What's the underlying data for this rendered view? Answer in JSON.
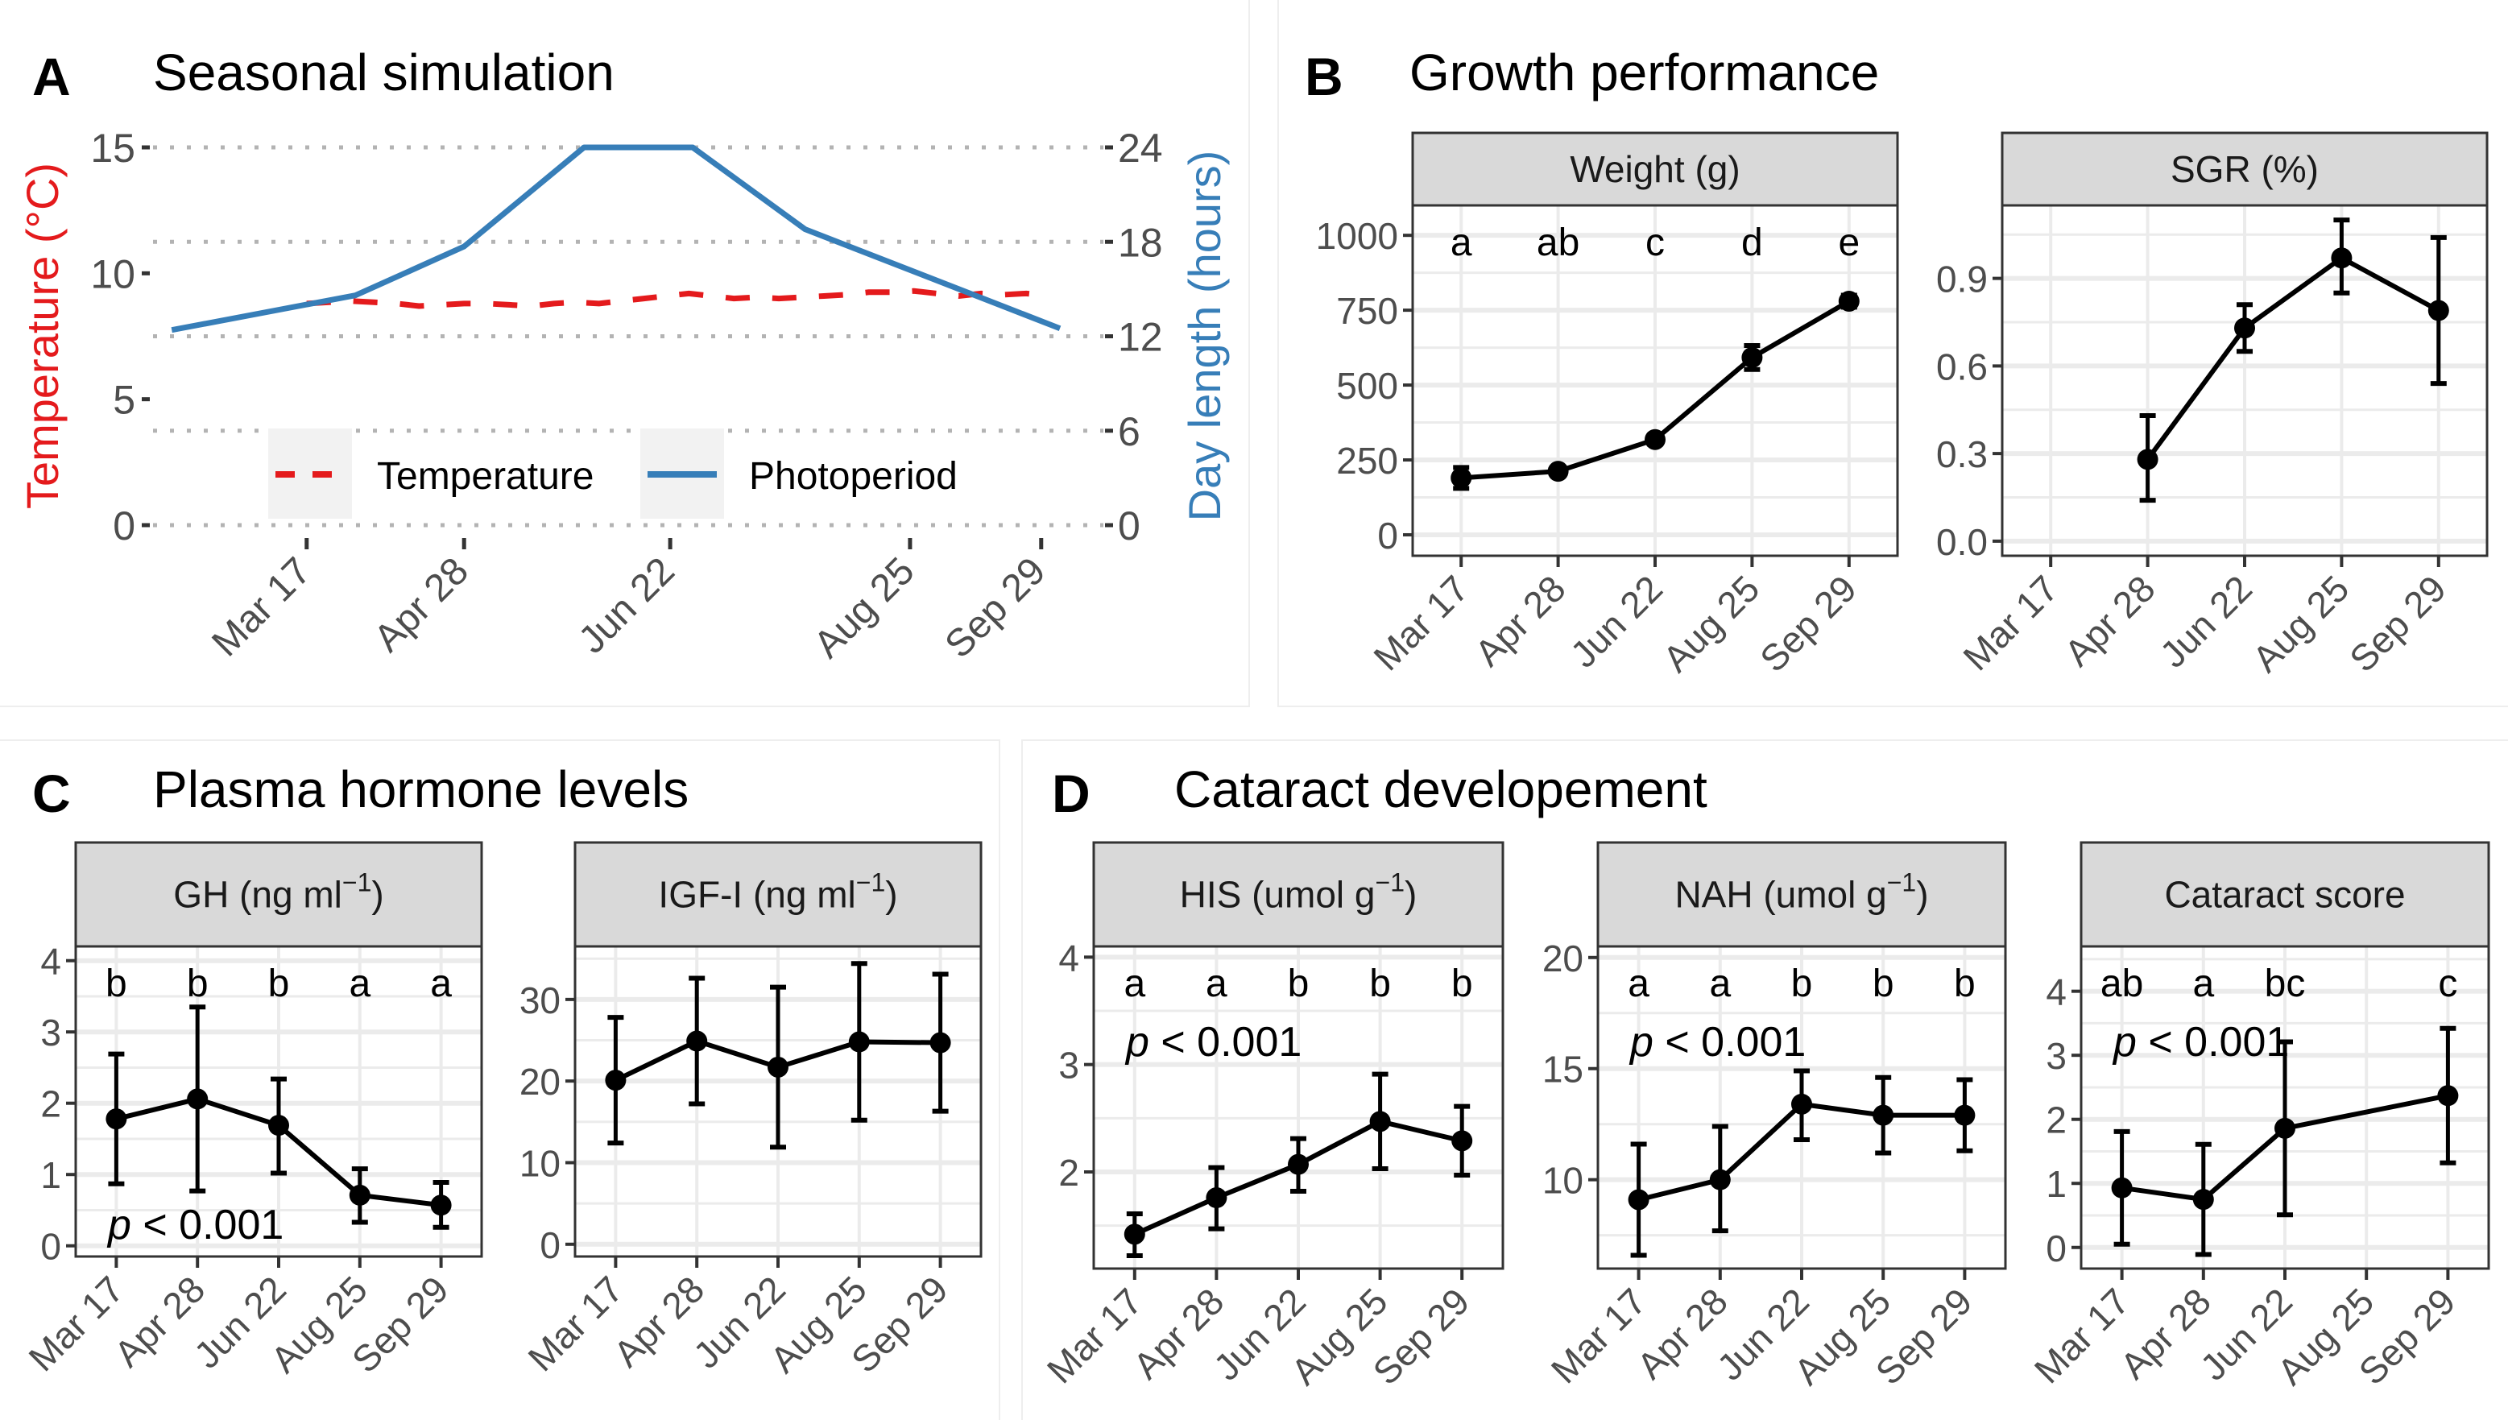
{
  "figure": {
    "panels": [
      {
        "letter": "A",
        "title": "Seasonal simulation"
      },
      {
        "letter": "B",
        "title": "Growth performance"
      },
      {
        "letter": "C",
        "title": "Plasma hormone levels"
      },
      {
        "letter": "D",
        "title": "Cataract developement"
      }
    ]
  },
  "colors": {
    "temperature": "#e41a1c",
    "photoperiod": "#377eb8",
    "strip_bg": "#d9d9d9",
    "grid": "#ebebeb",
    "axis_text": "#4d4d4d",
    "series": "#000000"
  },
  "chart_data": [
    {
      "id": "A",
      "type": "line",
      "title": "Seasonal simulation",
      "xlabel": "",
      "ylabel_left": "Temperature (°C)",
      "ylabel_right": "Day length (hours)",
      "x_ticks": [
        "Mar 17",
        "Apr 28",
        "Jun 22",
        "Aug 25",
        "Sep 29"
      ],
      "x_tick_days": [
        76,
        118,
        173,
        237,
        272
      ],
      "xlim_days": [
        35,
        280
      ],
      "ylim_left": [
        0,
        15
      ],
      "yticks_left": [
        0,
        5,
        10,
        15
      ],
      "ylim_right": [
        0,
        24
      ],
      "yticks_right": [
        0,
        6,
        12,
        18,
        24
      ],
      "grid": "dotted horizontal at right-axis ticks",
      "legend": {
        "position": "bottom-center",
        "entries": [
          "Temperature",
          "Photoperiod"
        ]
      },
      "series": [
        {
          "name": "Temperature",
          "axis": "left",
          "style": "dashed",
          "x_days": [
            76,
            82,
            88,
            94,
            100,
            106,
            112,
            118,
            124,
            130,
            136,
            142,
            148,
            154,
            160,
            166,
            172,
            178,
            184,
            190,
            196,
            202,
            208,
            214,
            220,
            226,
            232,
            238,
            244,
            250,
            256,
            262,
            268,
            274
          ],
          "values": [
            8.8,
            8.85,
            8.9,
            8.85,
            8.8,
            8.7,
            8.75,
            8.8,
            8.8,
            8.75,
            8.7,
            8.8,
            8.85,
            8.8,
            8.9,
            9.0,
            9.1,
            9.2,
            9.1,
            9.0,
            9.05,
            9.0,
            9.05,
            9.1,
            9.15,
            9.25,
            9.25,
            9.3,
            9.2,
            9.1,
            9.2,
            9.15,
            9.2,
            9.1
          ]
        },
        {
          "name": "Photoperiod",
          "axis": "right",
          "style": "solid",
          "x_days": [
            40,
            89,
            118,
            150,
            179,
            209,
            277
          ],
          "values": [
            12.4,
            14.6,
            17.7,
            24,
            24,
            18.8,
            12.5
          ]
        }
      ]
    },
    {
      "id": "B1",
      "type": "line",
      "facet": "Weight (g)",
      "categories": [
        "Mar 17",
        "Apr 28",
        "Jun 22",
        "Aug 25",
        "Sep 29"
      ],
      "values": [
        190,
        212,
        318,
        592,
        780
      ],
      "error_low": [
        155,
        200,
        303,
        552,
        760
      ],
      "error_high": [
        225,
        224,
        333,
        632,
        800
      ],
      "letters": [
        "a",
        "ab",
        "c",
        "d",
        "e"
      ],
      "ylim": [
        -70,
        1100
      ],
      "yticks": [
        0,
        250,
        500,
        750,
        1000
      ],
      "p_label": ""
    },
    {
      "id": "B2",
      "type": "line",
      "facet": "SGR (%)",
      "categories": [
        "Mar 17",
        "Apr 28",
        "Jun 22",
        "Aug 25",
        "Sep 29"
      ],
      "values": [
        null,
        0.28,
        0.73,
        0.97,
        0.79
      ],
      "error_low": [
        null,
        0.14,
        0.65,
        0.85,
        0.54
      ],
      "error_high": [
        null,
        0.43,
        0.81,
        1.1,
        1.04
      ],
      "letters": [],
      "ylim": [
        -0.05,
        1.15
      ],
      "yticks": [
        0.0,
        0.3,
        0.6,
        0.9
      ],
      "ytick_labels": [
        "0.0",
        "0.3",
        "0.6",
        "0.9"
      ],
      "p_label": ""
    },
    {
      "id": "C1",
      "type": "line",
      "facet_main": "GH (ng ml",
      "facet_sup": "−1",
      "facet_end": ")",
      "categories": [
        "Mar 17",
        "Apr 28",
        "Jun 22",
        "Aug 25",
        "Sep 29"
      ],
      "values": [
        1.78,
        2.06,
        1.69,
        0.71,
        0.57
      ],
      "error_low": [
        0.87,
        0.77,
        1.02,
        0.33,
        0.26
      ],
      "error_high": [
        2.69,
        3.35,
        2.34,
        1.08,
        0.89
      ],
      "letters": [
        "b",
        "b",
        "b",
        "a",
        "a"
      ],
      "ylim": [
        -0.15,
        4.2
      ],
      "yticks": [
        0,
        1,
        2,
        3,
        4
      ],
      "p_label": "< 0.001",
      "p_position": "bottom-left"
    },
    {
      "id": "C2",
      "type": "line",
      "facet_main": "IGF-I (ng ml",
      "facet_sup": "−1",
      "facet_end": ")",
      "categories": [
        "Mar 17",
        "Apr 28",
        "Jun 22",
        "Aug 25",
        "Sep 29"
      ],
      "values": [
        20.1,
        24.9,
        21.7,
        24.8,
        24.7
      ],
      "error_low": [
        12.4,
        17.2,
        11.9,
        15.2,
        16.3
      ],
      "error_high": [
        27.8,
        32.6,
        31.5,
        34.4,
        33.1
      ],
      "letters": [],
      "ylim": [
        -1.5,
        36.5
      ],
      "yticks": [
        0,
        10,
        20,
        30
      ],
      "p_label": ""
    },
    {
      "id": "D1",
      "type": "line",
      "facet_main": "HIS (umol g",
      "facet_sup": "−1",
      "facet_end": ")",
      "categories": [
        "Mar 17",
        "Apr 28",
        "Jun 22",
        "Aug 25",
        "Sep 29"
      ],
      "values": [
        1.42,
        1.76,
        2.07,
        2.47,
        2.29
      ],
      "error_low": [
        1.22,
        1.47,
        1.82,
        2.03,
        1.97
      ],
      "error_high": [
        1.61,
        2.04,
        2.31,
        2.91,
        2.61
      ],
      "letters": [
        "a",
        "a",
        "b",
        "b",
        "b"
      ],
      "ylim": [
        1.1,
        4.1
      ],
      "yticks": [
        2,
        3,
        4
      ],
      "p_label": "< 0.001",
      "p_position": "top-left"
    },
    {
      "id": "D2",
      "type": "line",
      "facet_main": "NAH (umol g",
      "facet_sup": "−1",
      "facet_end": ")",
      "categories": [
        "Mar 17",
        "Apr 28",
        "Jun 22",
        "Aug 25",
        "Sep 29"
      ],
      "values": [
        9.1,
        10.0,
        13.4,
        12.9,
        12.9
      ],
      "error_low": [
        6.6,
        7.7,
        11.8,
        11.2,
        11.3
      ],
      "error_high": [
        11.6,
        12.4,
        14.9,
        14.6,
        14.5
      ],
      "letters": [
        "a",
        "a",
        "b",
        "b",
        "b"
      ],
      "ylim": [
        6.0,
        20.5
      ],
      "yticks": [
        10,
        15,
        20
      ],
      "p_label": "< 0.001",
      "p_position": "top-left"
    },
    {
      "id": "D3",
      "type": "line",
      "facet_main": "Cataract score",
      "facet_sup": "",
      "facet_end": "",
      "categories": [
        "Mar 17",
        "Apr 28",
        "Jun 22",
        "Aug 25",
        "Sep 29"
      ],
      "values": [
        0.93,
        0.75,
        1.86,
        null,
        2.37
      ],
      "error_low": [
        0.05,
        -0.11,
        0.51,
        null,
        1.32
      ],
      "error_high": [
        1.81,
        1.61,
        3.21,
        null,
        3.42
      ],
      "letters": [
        "ab",
        "a",
        "bc",
        "",
        "c"
      ],
      "ylim": [
        -0.33,
        4.7
      ],
      "yticks": [
        0,
        1,
        2,
        3,
        4
      ],
      "p_label": "< 0.001",
      "p_position": "top-left"
    }
  ],
  "p_symbol": "p"
}
